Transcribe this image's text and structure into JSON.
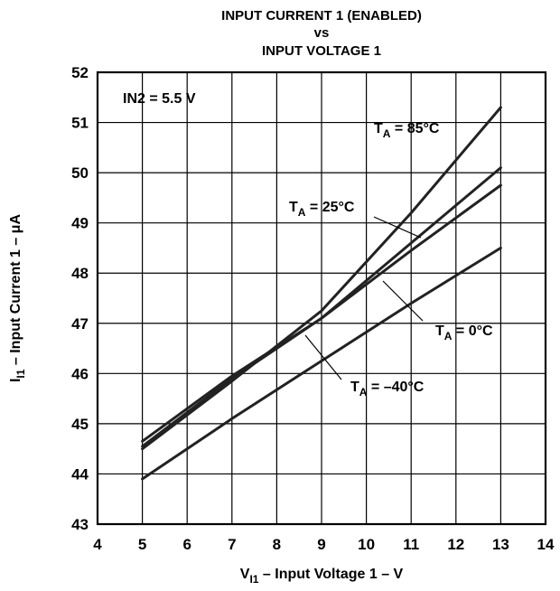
{
  "chart_data": {
    "type": "line",
    "title_lines": [
      "INPUT CURRENT 1 (ENABLED)",
      "vs",
      "INPUT VOLTAGE 1"
    ],
    "xlabel": {
      "main": "V",
      "sub": "I1",
      "rest": " – Input Voltage 1 – V"
    },
    "ylabel": {
      "main": "I",
      "sub": "I1",
      "rest": " – Input Current 1 – μA"
    },
    "xlim": [
      4,
      14
    ],
    "ylim": [
      43,
      52
    ],
    "x_ticks": [
      4,
      5,
      6,
      7,
      8,
      9,
      10,
      11,
      12,
      13,
      14
    ],
    "y_ticks": [
      43,
      44,
      45,
      46,
      47,
      48,
      49,
      50,
      51,
      52
    ],
    "grid": true,
    "condition_label": "IN2 = 5.5 V",
    "series": [
      {
        "name": "TA = 85°C",
        "label_main": "T",
        "label_sub": "A",
        "label_rest": " = 85°C",
        "x": [
          5,
          7,
          9,
          11,
          13
        ],
        "y": [
          44.5,
          45.85,
          47.25,
          49.2,
          51.3
        ]
      },
      {
        "name": "TA = 25°C",
        "label_main": "T",
        "label_sub": "A",
        "label_rest": " = 25°C",
        "x": [
          5,
          7,
          9,
          11,
          13
        ],
        "y": [
          44.55,
          45.9,
          47.1,
          48.6,
          50.1
        ]
      },
      {
        "name": "TA = 0°C",
        "label_main": "T",
        "label_sub": "A",
        "label_rest": " = 0°C",
        "x": [
          5,
          7,
          9,
          11,
          13
        ],
        "y": [
          44.65,
          45.95,
          47.1,
          48.45,
          49.75
        ]
      },
      {
        "name": "TA = –40°C",
        "label_main": "T",
        "label_sub": "A",
        "label_rest": " = –40°C",
        "x": [
          5,
          7,
          9,
          11,
          13
        ],
        "y": [
          43.9,
          45.1,
          46.25,
          47.4,
          48.5
        ]
      }
    ]
  }
}
